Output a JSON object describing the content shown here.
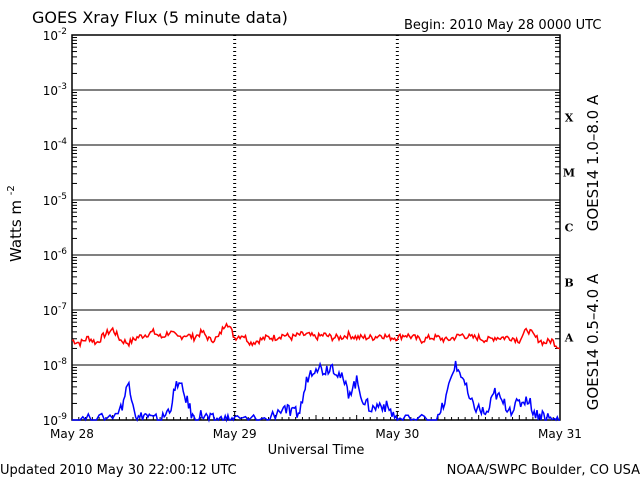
{
  "chart_data": {
    "type": "line",
    "title": "GOES Xray Flux (5 minute data)",
    "begin_label": "Begin:  2010 May 28 0000 UTC",
    "xlabel": "Universal Time",
    "ylabel": "Watts m",
    "ylabel_sup": "-2",
    "x_ticks": [
      "May 28",
      "May 29",
      "May 30",
      "May 31"
    ],
    "x_range_days": [
      0,
      3
    ],
    "y_scale": "log",
    "ylim": [
      1e-09,
      0.01
    ],
    "y_ticks": [
      {
        "base": "10",
        "exp": "-2"
      },
      {
        "base": "10",
        "exp": "-3"
      },
      {
        "base": "10",
        "exp": "-4"
      },
      {
        "base": "10",
        "exp": "-5"
      },
      {
        "base": "10",
        "exp": "-6"
      },
      {
        "base": "10",
        "exp": "-7"
      },
      {
        "base": "10",
        "exp": "-8"
      },
      {
        "base": "10",
        "exp": "-9"
      }
    ],
    "flare_classes": [
      "X",
      "M",
      "C",
      "B",
      "A"
    ],
    "series": [
      {
        "name": "GOES14 1.0–8.0 A",
        "color": "#ff0000",
        "x_days": [
          0,
          0.05,
          0.1,
          0.15,
          0.2,
          0.25,
          0.3,
          0.35,
          0.4,
          0.45,
          0.5,
          0.55,
          0.6,
          0.65,
          0.7,
          0.75,
          0.8,
          0.85,
          0.9,
          0.95,
          1.0,
          1.05,
          1.1,
          1.15,
          1.2,
          1.25,
          1.3,
          1.35,
          1.4,
          1.45,
          1.5,
          1.55,
          1.6,
          1.65,
          1.7,
          1.75,
          1.8,
          1.85,
          1.9,
          1.95,
          2.0,
          2.05,
          2.1,
          2.15,
          2.2,
          2.25,
          2.3,
          2.35,
          2.4,
          2.45,
          2.5,
          2.55,
          2.6,
          2.65,
          2.7,
          2.75,
          2.8,
          2.85,
          2.9,
          2.95,
          3.0
        ],
        "log10_flux": [
          -7.55,
          -7.6,
          -7.5,
          -7.6,
          -7.45,
          -7.35,
          -7.55,
          -7.6,
          -7.5,
          -7.45,
          -7.4,
          -7.5,
          -7.4,
          -7.5,
          -7.45,
          -7.5,
          -7.4,
          -7.55,
          -7.5,
          -7.2,
          -7.5,
          -7.45,
          -7.6,
          -7.55,
          -7.5,
          -7.5,
          -7.45,
          -7.5,
          -7.45,
          -7.45,
          -7.5,
          -7.45,
          -7.5,
          -7.5,
          -7.45,
          -7.5,
          -7.5,
          -7.5,
          -7.45,
          -7.5,
          -7.5,
          -7.45,
          -7.5,
          -7.55,
          -7.5,
          -7.5,
          -7.55,
          -7.5,
          -7.45,
          -7.5,
          -7.5,
          -7.55,
          -7.5,
          -7.5,
          -7.5,
          -7.55,
          -7.35,
          -7.5,
          -7.6,
          -7.55,
          -7.7
        ]
      },
      {
        "name": "GOES14 0.5–4.0 A",
        "color": "#0000ff",
        "x_days": [
          0,
          0.1,
          0.2,
          0.3,
          0.35,
          0.4,
          0.45,
          0.5,
          0.55,
          0.6,
          0.65,
          0.7,
          0.75,
          0.8,
          0.85,
          0.9,
          0.95,
          1.0,
          1.1,
          1.2,
          1.3,
          1.35,
          1.4,
          1.45,
          1.5,
          1.55,
          1.6,
          1.65,
          1.7,
          1.75,
          1.8,
          1.85,
          1.9,
          1.95,
          2.0,
          2.1,
          2.2,
          2.25,
          2.3,
          2.35,
          2.4,
          2.45,
          2.5,
          2.55,
          2.6,
          2.65,
          2.7,
          2.75,
          2.8,
          2.85,
          2.9,
          2.95,
          3.0
        ],
        "log10_flux": [
          -9.0,
          -9.0,
          -9.0,
          -8.8,
          -8.3,
          -9.0,
          -8.9,
          -9.0,
          -9.0,
          -8.8,
          -8.3,
          -8.6,
          -9.0,
          -8.9,
          -9.0,
          -9.0,
          -9.0,
          -9.0,
          -9.0,
          -9.0,
          -8.75,
          -8.9,
          -8.85,
          -8.2,
          -8.0,
          -8.1,
          -8.0,
          -8.2,
          -8.5,
          -8.3,
          -8.7,
          -8.8,
          -8.7,
          -8.8,
          -9.0,
          -9.0,
          -9.0,
          -9.0,
          -8.6,
          -8.0,
          -8.2,
          -8.7,
          -8.8,
          -8.9,
          -8.5,
          -8.7,
          -8.8,
          -8.7,
          -8.6,
          -8.9,
          -8.9,
          -9.0,
          -9.0
        ]
      }
    ]
  },
  "footer": {
    "updated": "Updated 2010 May 30 22:00:12 UTC",
    "credit": "NOAA/SWPC Boulder, CO USA"
  }
}
